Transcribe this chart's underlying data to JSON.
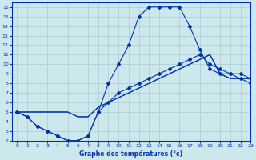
{
  "title": "Graphe des températures (°c)",
  "bg_color": "#cce8ec",
  "grid_color": "#aacccc",
  "line_color": "#0033aa",
  "xlim": [
    -0.5,
    23
  ],
  "ylim": [
    2,
    16.5
  ],
  "xticks": [
    0,
    1,
    2,
    3,
    4,
    5,
    6,
    7,
    8,
    9,
    10,
    11,
    12,
    13,
    14,
    15,
    16,
    17,
    18,
    19,
    20,
    21,
    22,
    23
  ],
  "yticks": [
    2,
    3,
    4,
    5,
    6,
    7,
    8,
    9,
    10,
    11,
    12,
    13,
    14,
    15,
    16
  ],
  "curve1_x": [
    0,
    1,
    2,
    3,
    4,
    5,
    6,
    7,
    8,
    9,
    10,
    11,
    12,
    13,
    14,
    15,
    16,
    17,
    18,
    19,
    20,
    21,
    22,
    23
  ],
  "curve1_y": [
    5.0,
    4.5,
    3.5,
    3.0,
    2.5,
    2.0,
    2.0,
    2.5,
    5.0,
    8.0,
    10.0,
    12.0,
    15.0,
    16.0,
    16.0,
    16.0,
    16.0,
    14.0,
    11.5,
    9.5,
    9.0,
    9.0,
    9.0,
    8.5
  ],
  "curve2_x": [
    0,
    1,
    2,
    3,
    4,
    5,
    6,
    7,
    8,
    9,
    10,
    11,
    12,
    13,
    14,
    15,
    16,
    17,
    18,
    19,
    20,
    21,
    22,
    23
  ],
  "curve2_y": [
    5.0,
    4.5,
    3.5,
    3.0,
    2.5,
    2.0,
    2.0,
    2.5,
    5.0,
    6.0,
    7.0,
    7.5,
    8.0,
    8.5,
    9.0,
    9.5,
    10.0,
    10.5,
    11.0,
    10.0,
    9.5,
    9.0,
    8.5,
    8.0
  ],
  "curve3_x": [
    0,
    1,
    2,
    3,
    4,
    5,
    6,
    7,
    8,
    9,
    10,
    11,
    12,
    13,
    14,
    15,
    16,
    17,
    18,
    19,
    20,
    21,
    22,
    23
  ],
  "curve3_y": [
    5.0,
    5.0,
    5.0,
    5.0,
    5.0,
    5.0,
    4.5,
    4.5,
    5.5,
    6.0,
    6.5,
    7.0,
    7.5,
    8.0,
    8.5,
    9.0,
    9.5,
    10.0,
    10.5,
    11.0,
    9.0,
    8.5,
    8.5,
    8.5
  ],
  "curve4_x": [
    0,
    1,
    2,
    3,
    4,
    5,
    6,
    7,
    8,
    9,
    10,
    11,
    12,
    13,
    14,
    15,
    16,
    17,
    18,
    19,
    20,
    21,
    22,
    23
  ],
  "curve4_y": [
    5.0,
    5.0,
    5.0,
    5.0,
    5.0,
    5.0,
    4.5,
    4.5,
    5.5,
    6.0,
    6.5,
    7.0,
    7.5,
    8.0,
    8.5,
    9.0,
    9.5,
    10.0,
    10.5,
    11.0,
    9.0,
    8.5,
    8.5,
    8.5
  ]
}
